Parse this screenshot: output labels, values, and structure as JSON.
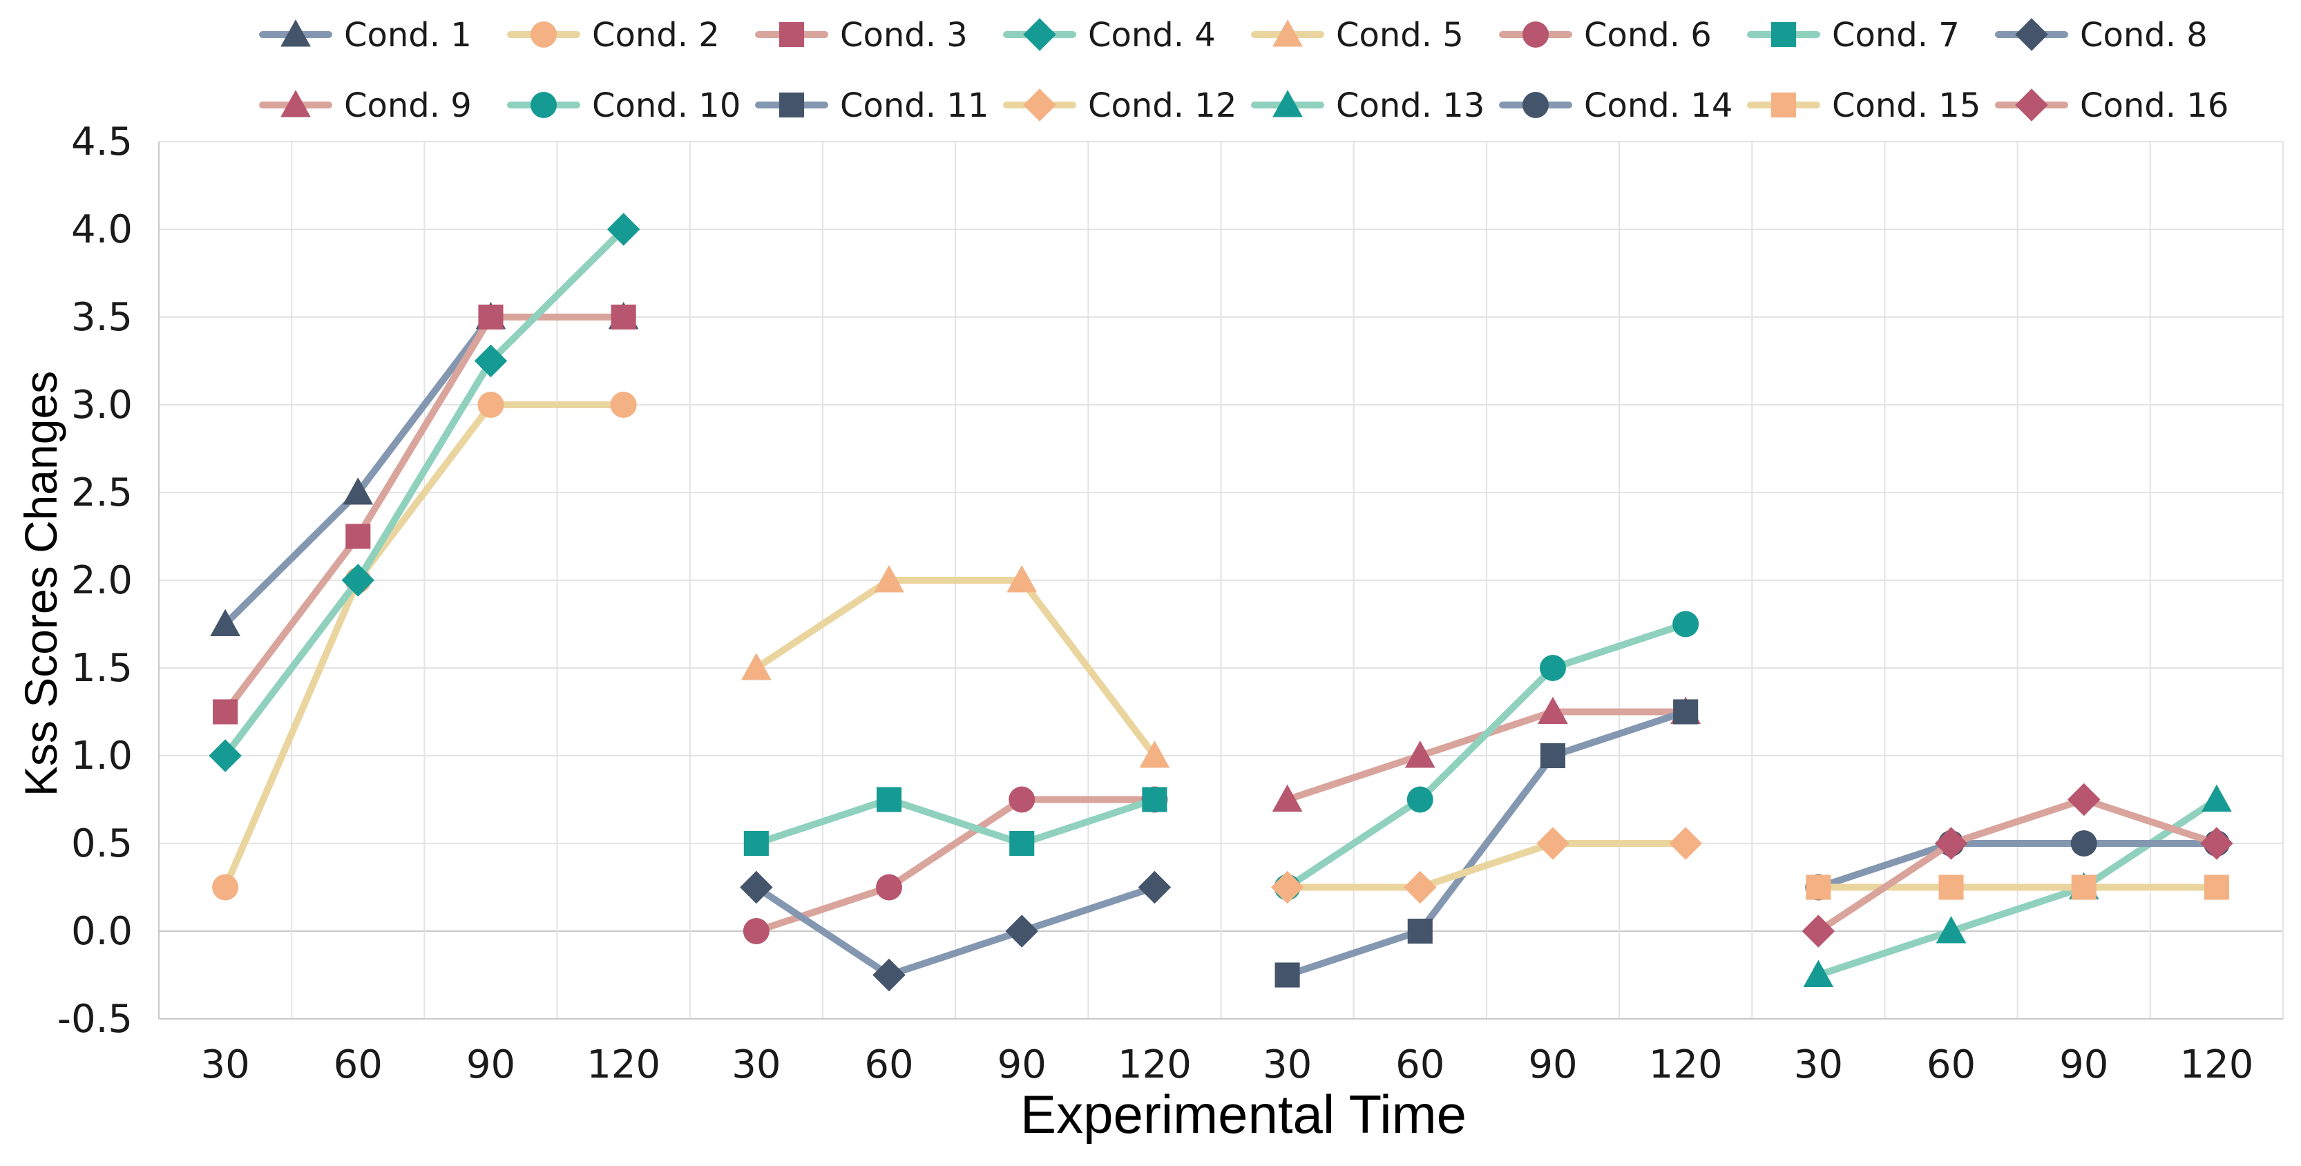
{
  "chart_data": {
    "type": "line",
    "title": "",
    "xlabel": "Experimental Time",
    "ylabel": "Kss Scores Changes",
    "ylim": [
      -0.5,
      4.5
    ],
    "yticks": [
      "-0.5",
      "0.0",
      "0.5",
      "1.0",
      "1.5",
      "2.0",
      "2.5",
      "3.0",
      "3.5",
      "4.0",
      "4.5"
    ],
    "grid": true,
    "legend_position": "top",
    "x_categories": [
      "30",
      "60",
      "90",
      "120",
      "30",
      "60",
      "90",
      "120",
      "30",
      "60",
      "90",
      "120",
      "30",
      "60",
      "90",
      "120"
    ],
    "series": [
      {
        "name": "Cond. 1",
        "x_index": [
          0,
          1,
          2,
          3
        ],
        "values": [
          1.75,
          2.5,
          3.5,
          3.5
        ],
        "marker": "triangle",
        "line_color": "#8497b0",
        "marker_color": "#44546a"
      },
      {
        "name": "Cond. 2",
        "x_index": [
          0,
          1,
          2,
          3
        ],
        "values": [
          0.25,
          2.0,
          3.0,
          3.0
        ],
        "marker": "circle",
        "line_color": "#ead59f",
        "marker_color": "#f4b183"
      },
      {
        "name": "Cond. 3",
        "x_index": [
          0,
          1,
          2,
          3
        ],
        "values": [
          1.25,
          2.25,
          3.5,
          3.5
        ],
        "marker": "square",
        "line_color": "#d9a49c",
        "marker_color": "#b7566e"
      },
      {
        "name": "Cond. 4",
        "x_index": [
          0,
          1,
          2,
          3
        ],
        "values": [
          1.0,
          2.0,
          3.25,
          4.0
        ],
        "marker": "diamond",
        "line_color": "#8fd1bd",
        "marker_color": "#169b94"
      },
      {
        "name": "Cond. 5",
        "x_index": [
          4,
          5,
          6,
          7
        ],
        "values": [
          1.5,
          2.0,
          2.0,
          1.0
        ],
        "marker": "triangle",
        "line_color": "#ead59f",
        "marker_color": "#f4b183"
      },
      {
        "name": "Cond. 6",
        "x_index": [
          4,
          5,
          6,
          7
        ],
        "values": [
          0.0,
          0.25,
          0.75,
          0.75
        ],
        "marker": "circle",
        "line_color": "#d9a49c",
        "marker_color": "#b7566e"
      },
      {
        "name": "Cond. 7",
        "x_index": [
          4,
          5,
          6,
          7
        ],
        "values": [
          0.5,
          0.75,
          0.5,
          0.75
        ],
        "marker": "square",
        "line_color": "#8fd1bd",
        "marker_color": "#169b94"
      },
      {
        "name": "Cond. 8",
        "x_index": [
          4,
          5,
          6,
          7
        ],
        "values": [
          0.25,
          -0.25,
          0.0,
          0.25
        ],
        "marker": "diamond",
        "line_color": "#8497b0",
        "marker_color": "#44546a"
      },
      {
        "name": "Cond. 9",
        "x_index": [
          8,
          9,
          10,
          11
        ],
        "values": [
          0.75,
          1.0,
          1.25,
          1.25
        ],
        "marker": "triangle",
        "line_color": "#d9a49c",
        "marker_color": "#b7566e"
      },
      {
        "name": "Cond. 10",
        "x_index": [
          8,
          9,
          10,
          11
        ],
        "values": [
          0.25,
          0.75,
          1.5,
          1.75
        ],
        "marker": "circle",
        "line_color": "#8fd1bd",
        "marker_color": "#169b94"
      },
      {
        "name": "Cond. 11",
        "x_index": [
          8,
          9,
          10,
          11
        ],
        "values": [
          -0.25,
          0.0,
          1.0,
          1.25
        ],
        "marker": "square",
        "line_color": "#8497b0",
        "marker_color": "#44546a"
      },
      {
        "name": "Cond. 12",
        "x_index": [
          8,
          9,
          10,
          11
        ],
        "values": [
          0.25,
          0.25,
          0.5,
          0.5
        ],
        "marker": "diamond",
        "line_color": "#ead59f",
        "marker_color": "#f4b183"
      },
      {
        "name": "Cond. 13",
        "x_index": [
          12,
          13,
          14,
          15
        ],
        "values": [
          -0.25,
          0.0,
          0.25,
          0.75
        ],
        "marker": "triangle",
        "line_color": "#8fd1bd",
        "marker_color": "#169b94"
      },
      {
        "name": "Cond. 14",
        "x_index": [
          12,
          13,
          14,
          15
        ],
        "values": [
          0.25,
          0.5,
          0.5,
          0.5
        ],
        "marker": "circle",
        "line_color": "#8497b0",
        "marker_color": "#44546a"
      },
      {
        "name": "Cond. 15",
        "x_index": [
          12,
          13,
          14,
          15
        ],
        "values": [
          0.25,
          0.25,
          0.25,
          0.25
        ],
        "marker": "square",
        "line_color": "#ead59f",
        "marker_color": "#f4b183"
      },
      {
        "name": "Cond. 16",
        "x_index": [
          12,
          13,
          14,
          15
        ],
        "values": [
          0.0,
          0.5,
          0.75,
          0.5
        ],
        "marker": "diamond",
        "line_color": "#d9a49c",
        "marker_color": "#b7566e"
      }
    ]
  }
}
